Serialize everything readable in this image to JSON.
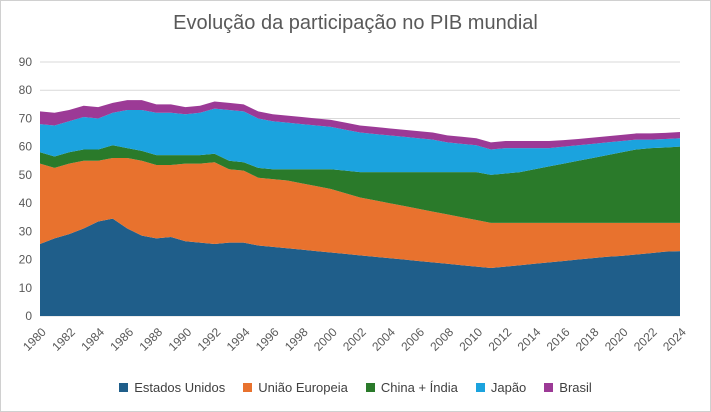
{
  "chart_data": {
    "type": "area",
    "stacked": true,
    "title": "Evolução da participação no PIB mundial",
    "ylim": [
      0,
      90
    ],
    "yticks": [
      0,
      10,
      20,
      30,
      40,
      50,
      60,
      70,
      80,
      90
    ],
    "x": [
      1980,
      1981,
      1982,
      1983,
      1984,
      1985,
      1986,
      1987,
      1988,
      1989,
      1990,
      1991,
      1992,
      1993,
      1994,
      1995,
      1996,
      1997,
      1998,
      1999,
      2000,
      2001,
      2002,
      2003,
      2004,
      2005,
      2006,
      2007,
      2008,
      2009,
      2010,
      2011,
      2012,
      2013,
      2014,
      2015,
      2016,
      2017,
      2018,
      2019,
      2020,
      2021,
      2022,
      2023,
      2024
    ],
    "xticks": [
      1980,
      1982,
      1984,
      1986,
      1988,
      1990,
      1992,
      1994,
      1996,
      1998,
      2000,
      2002,
      2004,
      2006,
      2008,
      2010,
      2012,
      2014,
      2016,
      2018,
      2020,
      2022,
      2024
    ],
    "grid": true,
    "legend_position": "bottom",
    "series": [
      {
        "name": "Estados Unidos",
        "color": "#1f5e8a",
        "values": [
          25.5,
          27.5,
          29,
          31,
          33.5,
          34.5,
          31,
          28.5,
          27.5,
          28,
          26.5,
          26,
          25.5,
          26,
          26,
          25,
          24.5,
          24,
          23.5,
          23,
          22.5,
          22,
          21.5,
          21,
          20.5,
          20,
          19.5,
          19,
          18.5,
          18,
          17.5,
          17,
          17.5,
          18,
          18.5,
          19,
          19.5,
          20,
          20.5,
          21,
          21.3,
          21.8,
          22.3,
          22.8,
          23
        ]
      },
      {
        "name": "União Europeia",
        "color": "#e8722e",
        "values": [
          28.5,
          25,
          25,
          24,
          21.5,
          21.5,
          25,
          26.5,
          26,
          25.5,
          27.5,
          28,
          29,
          26,
          25.5,
          24,
          24,
          24,
          23.5,
          23,
          22.5,
          21.5,
          20.5,
          20,
          19.5,
          19,
          18.5,
          18,
          17.5,
          17,
          16.5,
          16,
          15.5,
          15,
          14.5,
          14,
          13.5,
          13,
          12.5,
          12,
          11.7,
          11.2,
          10.7,
          10.2,
          10
        ]
      },
      {
        "name": "China + Índia",
        "color": "#2a7a2a",
        "values": [
          4,
          4,
          4,
          4,
          4,
          4.5,
          3.5,
          3.5,
          3.5,
          3.5,
          3,
          3,
          3,
          3,
          3,
          3.5,
          3.5,
          4,
          5,
          6,
          7,
          8,
          9,
          10,
          11,
          12,
          13,
          14,
          15,
          16,
          17,
          17,
          17.5,
          18,
          19,
          20,
          21,
          22,
          23,
          24,
          25,
          26,
          26.5,
          26.7,
          27
        ]
      },
      {
        "name": "Japão",
        "color": "#1ba3de",
        "values": [
          10,
          11,
          11,
          11.5,
          11,
          11.5,
          13.5,
          14.5,
          15,
          15,
          14.5,
          15,
          16,
          18,
          18,
          17.5,
          17,
          16.5,
          16,
          15.5,
          15,
          14.5,
          14,
          13.5,
          13,
          12.5,
          12,
          11.5,
          10.5,
          10,
          9.5,
          9,
          9,
          8.5,
          7.5,
          6.5,
          6,
          5.5,
          5,
          4.5,
          4,
          3.5,
          3,
          3,
          3
        ]
      },
      {
        "name": "Brasil",
        "color": "#9c3a96",
        "values": [
          4.5,
          4.5,
          4,
          4,
          4,
          3.5,
          3.5,
          3.5,
          3,
          3,
          2.5,
          2.5,
          2.5,
          2.5,
          2.5,
          2.5,
          2.5,
          2.5,
          2.5,
          2.5,
          2.5,
          2.5,
          2.5,
          2.5,
          2.5,
          2.5,
          2.5,
          2.5,
          2.5,
          2.5,
          2.5,
          2.5,
          2.5,
          2.5,
          2.5,
          2.5,
          2.3,
          2.2,
          2.2,
          2.2,
          2.2,
          2.2,
          2.2,
          2.2,
          2.2
        ]
      }
    ]
  }
}
